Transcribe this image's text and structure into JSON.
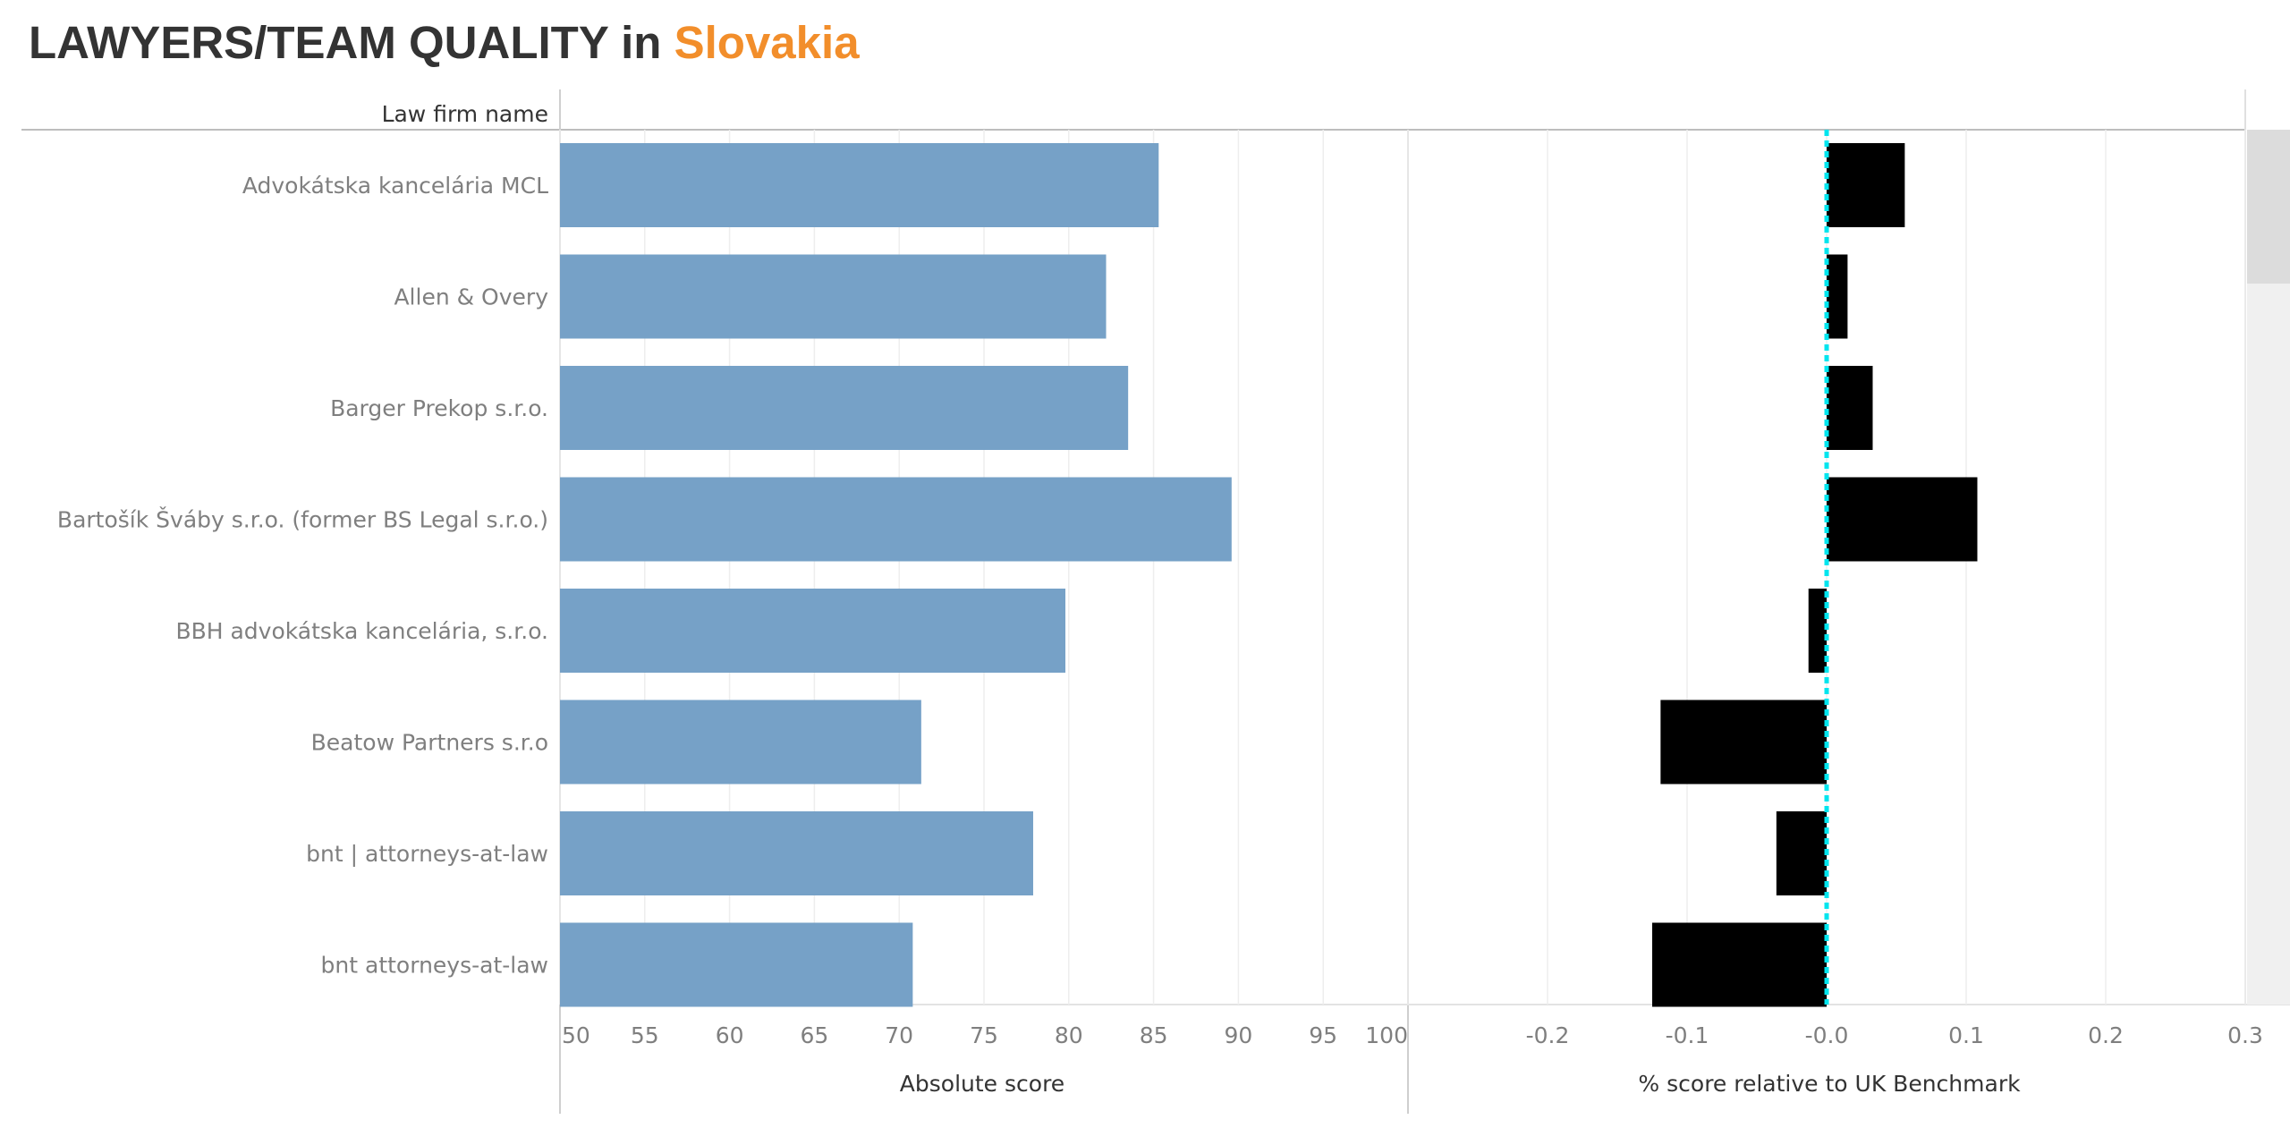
{
  "title": {
    "prefix": "LAWYERS/TEAM QUALITY",
    "connector": "in",
    "country": "Slovakia"
  },
  "colors": {
    "title": "#333333",
    "country": "#f28e2b",
    "bar_absolute": "#76a1c7",
    "bar_relative": "#000000",
    "benchmark_line": "#00e5ee",
    "label_text": "#7f7f7f"
  },
  "chart_data": [
    {
      "type": "bar",
      "orientation": "horizontal",
      "row_header": "Law firm name",
      "categories": [
        "Advokátska kancelária MCL",
        "Allen & Overy",
        "Barger Prekop s.r.o.",
        "Bartošík Šváby s.r.o. (former BS Legal s.r.o.)",
        "BBH advokátska kancelária, s.r.o.",
        "Beatow Partners s.r.o",
        "bnt | attorneys-at-law",
        "bnt attorneys-at-law"
      ],
      "values": [
        85.3,
        82.2,
        83.5,
        89.6,
        79.8,
        71.3,
        77.9,
        70.8
      ],
      "xlabel": "Absolute score",
      "xlim": [
        50,
        100
      ],
      "xticks": [
        "50",
        "55",
        "60",
        "65",
        "70",
        "75",
        "80",
        "85",
        "90",
        "95",
        "100"
      ],
      "grid": true
    },
    {
      "type": "bar",
      "orientation": "horizontal",
      "categories": [
        "Advokátska kancelária MCL",
        "Allen & Overy",
        "Barger Prekop s.r.o.",
        "Bartošík Šváby s.r.o. (former BS Legal s.r.o.)",
        "BBH advokátska kancelária, s.r.o.",
        "Beatow Partners s.r.o",
        "bnt | attorneys-at-law",
        "bnt attorneys-at-law"
      ],
      "values": [
        0.056,
        0.015,
        0.033,
        0.108,
        -0.013,
        -0.119,
        -0.036,
        -0.125
      ],
      "xlabel": "% score relative to UK Benchmark",
      "xlim": [
        -0.3,
        0.3
      ],
      "xticks": [
        "-0.2",
        "-0.1",
        "-0.0",
        "0.1",
        "0.2",
        "0.3"
      ],
      "reference_line": 0,
      "grid": true
    }
  ]
}
